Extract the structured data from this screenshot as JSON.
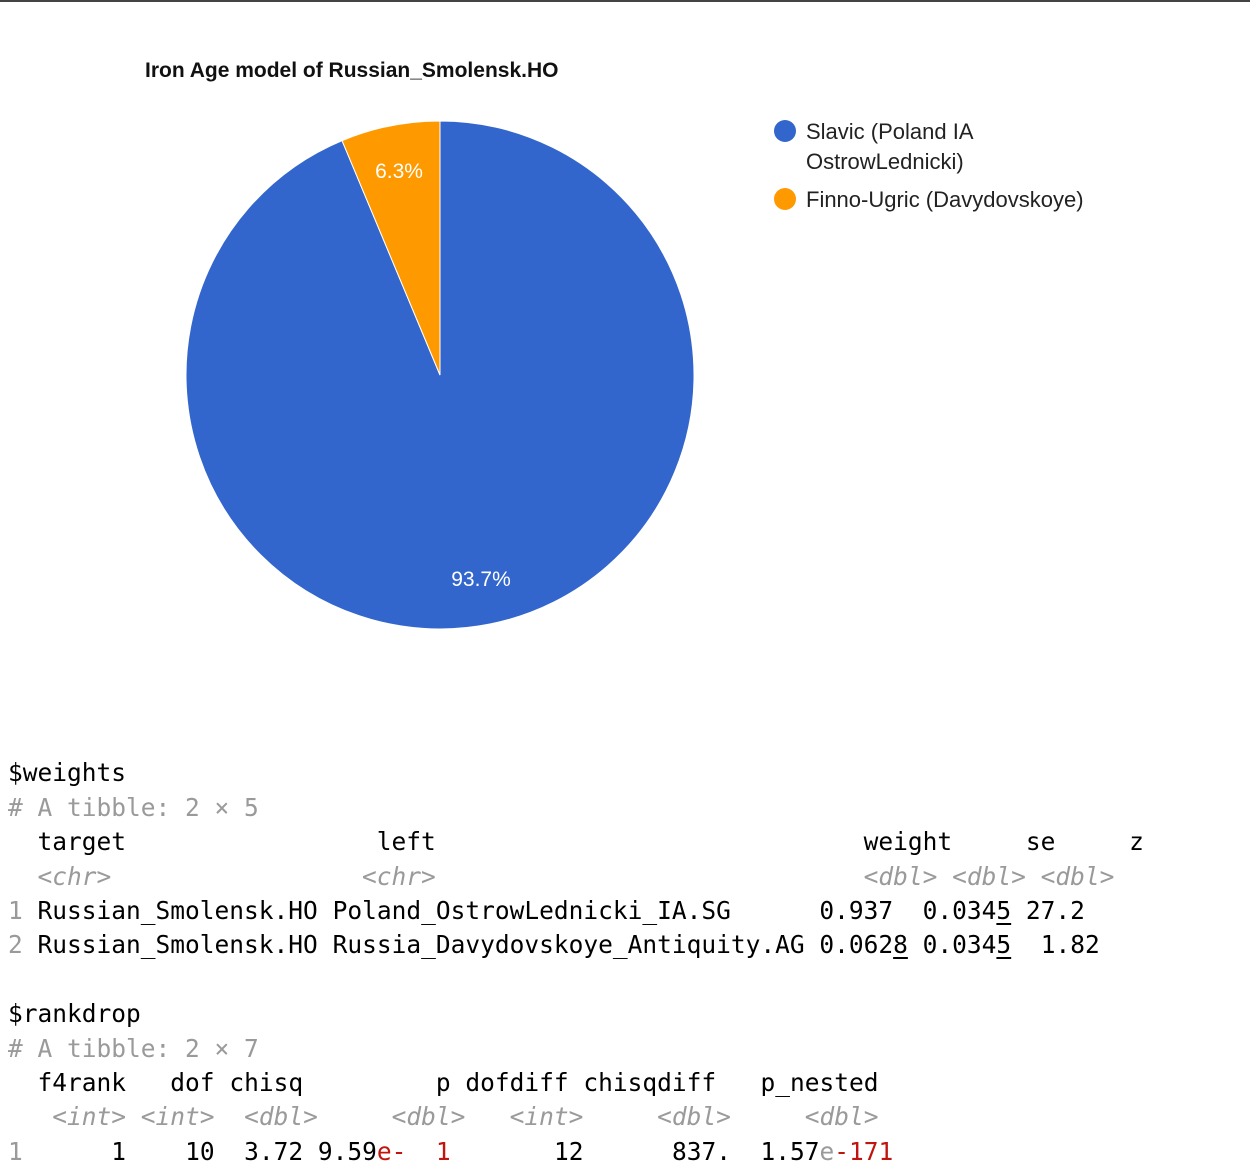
{
  "chart_data": {
    "type": "pie",
    "title": "Iron Age model of Russian_Smolensk.HO",
    "slices": [
      {
        "label": "Slavic (Poland IA OstrowLednicki)",
        "value": 93.7,
        "display": "93.7%",
        "color": "#3366cc"
      },
      {
        "label": "Finno-Ugric (Davydovskoye)",
        "value": 6.3,
        "display": "6.3%",
        "color": "#ff9900"
      }
    ],
    "legend_position": "right",
    "legend_lines": [
      [
        "Slavic (Poland IA",
        "OstrowLednicki)"
      ],
      [
        "Finno-Ugric (Davydovskoye)"
      ]
    ]
  },
  "console": {
    "weights": {
      "header": "$weights",
      "tibble": "# A tibble: 2 × 5",
      "columns": [
        "target",
        "left",
        "weight",
        "se",
        "z"
      ],
      "types": [
        "<chr>",
        "<chr>",
        "<dbl>",
        "<dbl>",
        "<dbl>"
      ],
      "rows": [
        {
          "index": "1",
          "target": "Russian_Smolensk.HO",
          "left": "Poland_OstrowLednicki_IA.SG",
          "weight_main": "0.937",
          "weight_ul": "",
          "se_main": "0.034",
          "se_ul": "5",
          "z": "27.2"
        },
        {
          "index": "2",
          "target": "Russian_Smolensk.HO",
          "left": "Russia_Davydovskoye_Antiquity.AG",
          "weight_main": "0.062",
          "weight_ul": "8",
          "se_main": "0.034",
          "se_ul": "5",
          "z": "1.82"
        }
      ]
    },
    "rankdrop": {
      "header": "$rankdrop",
      "tibble": "# A tibble: 2 × 7",
      "columns": [
        "f4rank",
        "dof",
        "chisq",
        "p",
        "dofdiff",
        "chisqdiff",
        "p_nested"
      ],
      "types": [
        "<int>",
        "<int>",
        "<dbl>",
        "<dbl>",
        "<int>",
        "<dbl>",
        "<dbl>"
      ],
      "rows": [
        {
          "index": "1",
          "f4rank": "1",
          "dof": "10",
          "chisq": "3.72",
          "p_mant": "9.59",
          "p_e": "e-",
          "p_exp": "1",
          "dofdiff": "12",
          "chisqdiff": "837.",
          "pn_mant": "1.57",
          "pn_e": "e",
          "pn_exp": "-171"
        }
      ]
    }
  }
}
